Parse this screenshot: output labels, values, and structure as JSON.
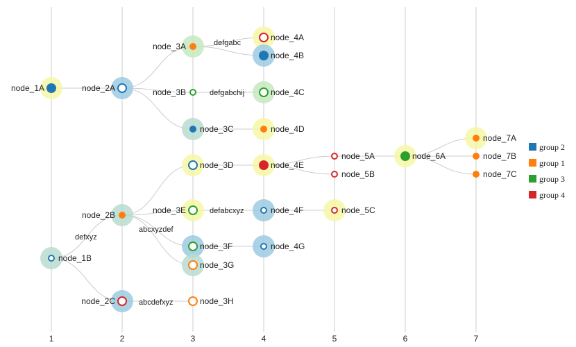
{
  "colors": {
    "group 1": "#ff7f0e",
    "group 2": "#1f77b4",
    "group 3": "#2ca02c",
    "group 4": "#d62728",
    "halo_blue": "#9ecae1",
    "halo_green": "#c7e9c0",
    "halo_teal": "#b8dcd0",
    "halo_yellow": "#f7f7a8",
    "grid": "#cccccc",
    "edge": "#cccccc"
  },
  "axis": {
    "levels": [
      "1",
      "2",
      "3",
      "4",
      "5",
      "6",
      "7"
    ]
  },
  "legend": [
    {
      "label": "group 2",
      "group": "group 2"
    },
    {
      "label": "group 1",
      "group": "group 1"
    },
    {
      "label": "group 3",
      "group": "group 3"
    },
    {
      "label": "group 4",
      "group": "group 4"
    }
  ],
  "nodes": [
    {
      "id": "node_1A",
      "level": 1,
      "group": "group 2",
      "style": "filled",
      "halo": "halo_yellow"
    },
    {
      "id": "node_1B",
      "level": 1,
      "group": "group 2",
      "style": "ring-small",
      "halo": "halo_teal"
    },
    {
      "id": "node_2A",
      "level": 2,
      "group": "group 2",
      "style": "ring",
      "halo": "halo_blue"
    },
    {
      "id": "node_2B",
      "level": 2,
      "group": "group 1",
      "style": "filled-small",
      "halo": "halo_teal"
    },
    {
      "id": "node_2C",
      "level": 2,
      "group": "group 4",
      "style": "ring",
      "halo": "halo_blue"
    },
    {
      "id": "node_3A",
      "level": 3,
      "group": "group 1",
      "style": "filled-small",
      "halo": "halo_green"
    },
    {
      "id": "node_3B",
      "level": 3,
      "group": "group 3",
      "style": "ring-small",
      "halo": null
    },
    {
      "id": "node_3C",
      "level": 3,
      "group": "group 2",
      "style": "filled-small",
      "halo": "halo_teal"
    },
    {
      "id": "node_3D",
      "level": 3,
      "group": "group 2",
      "style": "ring",
      "halo": "halo_yellow"
    },
    {
      "id": "node_3E",
      "level": 3,
      "group": "group 3",
      "style": "ring",
      "halo": "halo_yellow"
    },
    {
      "id": "node_3F",
      "level": 3,
      "group": "group 3",
      "style": "ring",
      "halo": "halo_blue"
    },
    {
      "id": "node_3G",
      "level": 3,
      "group": "group 1",
      "style": "ring",
      "halo": "halo_teal"
    },
    {
      "id": "node_3H",
      "level": 3,
      "group": "group 1",
      "style": "ring",
      "halo": null
    },
    {
      "id": "node_4A",
      "level": 4,
      "group": "group 4",
      "style": "ring",
      "halo": "halo_yellow"
    },
    {
      "id": "node_4B",
      "level": 4,
      "group": "group 2",
      "style": "filled",
      "halo": "halo_blue"
    },
    {
      "id": "node_4C",
      "level": 4,
      "group": "group 3",
      "style": "ring",
      "halo": "halo_green"
    },
    {
      "id": "node_4D",
      "level": 4,
      "group": "group 1",
      "style": "filled-small",
      "halo": "halo_yellow"
    },
    {
      "id": "node_4E",
      "level": 4,
      "group": "group 4",
      "style": "filled",
      "halo": "halo_yellow"
    },
    {
      "id": "node_4F",
      "level": 4,
      "group": "group 2",
      "style": "ring-small",
      "halo": "halo_blue"
    },
    {
      "id": "node_4G",
      "level": 4,
      "group": "group 2",
      "style": "ring-small",
      "halo": "halo_blue"
    },
    {
      "id": "node_5A",
      "level": 5,
      "group": "group 4",
      "style": "ring-small",
      "halo": null
    },
    {
      "id": "node_5B",
      "level": 5,
      "group": "group 4",
      "style": "ring-small",
      "halo": null
    },
    {
      "id": "node_5C",
      "level": 5,
      "group": "group 4",
      "style": "ring-small",
      "halo": "halo_yellow"
    },
    {
      "id": "node_6A",
      "level": 6,
      "group": "group 3",
      "style": "filled",
      "halo": "halo_yellow"
    },
    {
      "id": "node_7A",
      "level": 7,
      "group": "group 1",
      "style": "filled-small",
      "halo": "halo_yellow"
    },
    {
      "id": "node_7B",
      "level": 7,
      "group": "group 1",
      "style": "filled-small",
      "halo": null
    },
    {
      "id": "node_7C",
      "level": 7,
      "group": "group 1",
      "style": "filled-small",
      "halo": null
    }
  ],
  "edges": [
    {
      "from": "node_1A",
      "to": "node_2A",
      "label": ""
    },
    {
      "from": "node_1B",
      "to": "node_2B",
      "label": "defxyz"
    },
    {
      "from": "node_1B",
      "to": "node_2C",
      "label": ""
    },
    {
      "from": "node_2A",
      "to": "node_3A",
      "label": ""
    },
    {
      "from": "node_2A",
      "to": "node_3B",
      "label": ""
    },
    {
      "from": "node_2A",
      "to": "node_3C",
      "label": ""
    },
    {
      "from": "node_2B",
      "to": "node_3D",
      "label": ""
    },
    {
      "from": "node_2B",
      "to": "node_3E",
      "label": ""
    },
    {
      "from": "node_2B",
      "to": "node_3F",
      "label": "abcxyzdef"
    },
    {
      "from": "node_2B",
      "to": "node_3G",
      "label": ""
    },
    {
      "from": "node_2C",
      "to": "node_3H",
      "label": "abcdefxyz"
    },
    {
      "from": "node_3A",
      "to": "node_4A",
      "label": "defgabc"
    },
    {
      "from": "node_3A",
      "to": "node_4B",
      "label": ""
    },
    {
      "from": "node_3B",
      "to": "node_4C",
      "label": "defgabchij"
    },
    {
      "from": "node_3C",
      "to": "node_4D",
      "label": ""
    },
    {
      "from": "node_3D",
      "to": "node_4E",
      "label": ""
    },
    {
      "from": "node_3E",
      "to": "node_4F",
      "label": "defabcxyz"
    },
    {
      "from": "node_3F",
      "to": "node_4G",
      "label": ""
    },
    {
      "from": "node_4E",
      "to": "node_5A",
      "label": ""
    },
    {
      "from": "node_4E",
      "to": "node_5B",
      "label": ""
    },
    {
      "from": "node_4F",
      "to": "node_5C",
      "label": ""
    },
    {
      "from": "node_5A",
      "to": "node_6A",
      "label": ""
    },
    {
      "from": "node_6A",
      "to": "node_7A",
      "label": ""
    },
    {
      "from": "node_6A",
      "to": "node_7B",
      "label": ""
    },
    {
      "from": "node_6A",
      "to": "node_7C",
      "label": ""
    }
  ]
}
